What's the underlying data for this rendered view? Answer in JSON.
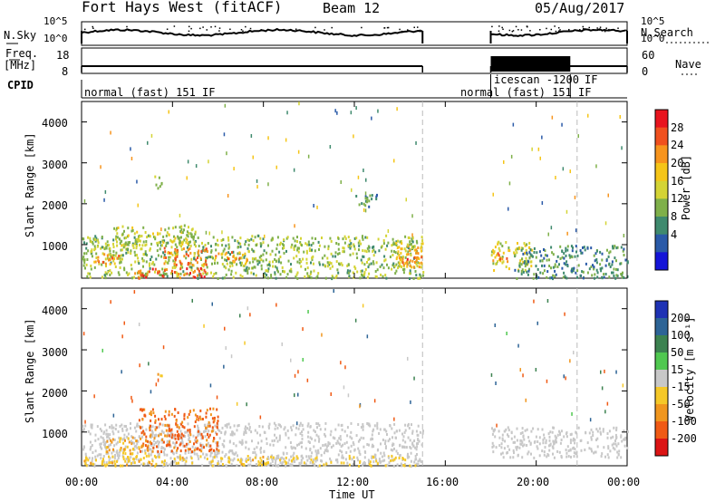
{
  "header": {
    "station": "Fort Hays West (fitACF)",
    "beam": "Beam 12",
    "date": "05/Aug/2017"
  },
  "noise_panel": {
    "left_label": "N.Sky",
    "right_label": "N.Search",
    "left_ticks": [
      "10^5",
      "10^0"
    ],
    "right_ticks": [
      "10^5",
      "10^0"
    ]
  },
  "freq_panel": {
    "left_label_1": "Freq.",
    "left_label_2": "[MHz]",
    "right_label": "Nave",
    "left_ticks": [
      "18",
      "8"
    ],
    "right_ticks": [
      "60",
      "0"
    ]
  },
  "cpid": {
    "label": "CPID",
    "segments": [
      "normal (fast) 151 IF",
      "normal (fast) 151 IF",
      "icescan -1200",
      "IF"
    ]
  },
  "axes": {
    "ylabel": "Slant Range [km]",
    "xlabel": "Time UT",
    "y_ticks": [
      "4000",
      "3000",
      "2000",
      "1000"
    ],
    "x_ticks": [
      "00:00",
      "04:00",
      "08:00",
      "12:00",
      "16:00",
      "20:00",
      "00:00"
    ]
  },
  "power_colorbar": {
    "label": "Power [dB]",
    "ticks": [
      "28",
      "24",
      "20",
      "16",
      "12",
      "8",
      "4"
    ],
    "colors": [
      "#e8141e",
      "#f0501e",
      "#f7941d",
      "#f5c518",
      "#d4d435",
      "#7fb04a",
      "#3f8a6e",
      "#2a5aa8",
      "#1414d8"
    ]
  },
  "velocity_colorbar": {
    "label": "Velocity [m s⁻¹]",
    "ticks": [
      "200",
      "100",
      "50",
      "15",
      "-15",
      "-50",
      "-100",
      "-200"
    ],
    "colors": [
      "#1e32b4",
      "#2d6496",
      "#3c8250",
      "#50c850",
      "#c8c8c8",
      "#f5c828",
      "#f0961e",
      "#f05a14",
      "#dc1414"
    ]
  },
  "chart_data": [
    {
      "type": "line",
      "title": "N.Sky / N.Search",
      "x_unit": "hours UT",
      "xlim": [
        0,
        24
      ],
      "ylog": true,
      "ylim": [
        1,
        100000
      ],
      "segments": [
        {
          "x_start": 0.0,
          "x_end": 15.0,
          "level": 3000
        },
        {
          "x_start": 18.0,
          "x_end": 24.0,
          "level": 3000
        }
      ]
    },
    {
      "type": "line",
      "title": "Freq. / Nave",
      "x_unit": "hours UT",
      "xlim": [
        0,
        24
      ],
      "ylim": [
        8,
        18
      ],
      "freq_segments": [
        {
          "x_start": 0.0,
          "x_end": 15.0,
          "value": 10.5
        },
        {
          "x_start": 18.0,
          "x_end": 24.0,
          "value": 10.5
        }
      ],
      "nave_block": {
        "x_start": 18.0,
        "x_end": 21.5,
        "value": 55
      }
    },
    {
      "type": "heatmap",
      "title": "Power [dB]",
      "x_unit": "hours UT",
      "xlim": [
        0,
        24
      ],
      "ylim": [
        180,
        4500
      ],
      "regions": [
        {
          "t0": 0.0,
          "t1": 15.0,
          "r0": 200,
          "r1": 1250,
          "value": 12
        },
        {
          "t0": 1.3,
          "t1": 5.0,
          "r0": 1000,
          "r1": 1500,
          "value": 14
        },
        {
          "t0": 3.5,
          "t1": 5.5,
          "r0": 500,
          "r1": 950,
          "value": 24
        },
        {
          "t0": 2.3,
          "t1": 5.5,
          "r0": 200,
          "r1": 450,
          "value": 26
        },
        {
          "t0": 0.3,
          "t1": 1.7,
          "r0": 550,
          "r1": 800,
          "value": 22
        },
        {
          "t0": 5.8,
          "t1": 7.3,
          "r0": 550,
          "r1": 850,
          "value": 22
        },
        {
          "t0": 13.8,
          "t1": 15.0,
          "r0": 450,
          "r1": 1100,
          "value": 20
        },
        {
          "t0": 14.1,
          "t1": 15.0,
          "r0": 550,
          "r1": 800,
          "value": 26
        },
        {
          "t0": 18.0,
          "t1": 19.8,
          "r0": 400,
          "r1": 1100,
          "value": 16
        },
        {
          "t0": 18.0,
          "t1": 18.7,
          "r0": 600,
          "r1": 850,
          "value": 24
        },
        {
          "t0": 19.0,
          "t1": 24.0,
          "r0": 200,
          "r1": 1000,
          "value": 8
        },
        {
          "t0": 3.2,
          "t1": 3.6,
          "r0": 2400,
          "r1": 2700,
          "value": 12
        },
        {
          "t0": 12.0,
          "t1": 13.0,
          "r0": 1950,
          "r1": 2300,
          "value": 8
        }
      ]
    },
    {
      "type": "heatmap",
      "title": "Velocity [m s⁻¹]",
      "x_unit": "hours UT",
      "xlim": [
        0,
        24
      ],
      "ylim": [
        180,
        4500
      ],
      "regions": [
        {
          "t0": 0.0,
          "t1": 15.0,
          "r0": 200,
          "r1": 1250,
          "value": 0
        },
        {
          "t0": 2.5,
          "t1": 6.0,
          "r0": 550,
          "r1": 1600,
          "value": -80
        },
        {
          "t0": 1.0,
          "t1": 3.0,
          "r0": 500,
          "r1": 900,
          "value": -40
        },
        {
          "t0": 0.0,
          "t1": 8.0,
          "r0": 200,
          "r1": 450,
          "value": -30
        },
        {
          "t0": 8.0,
          "t1": 15.0,
          "r0": 200,
          "r1": 450,
          "value": -20
        },
        {
          "t0": 18.0,
          "t1": 24.0,
          "r0": 400,
          "r1": 1150,
          "value": 0
        },
        {
          "t0": 3.2,
          "t1": 3.6,
          "r0": 2350,
          "r1": 2500,
          "value": -40
        }
      ]
    }
  ]
}
